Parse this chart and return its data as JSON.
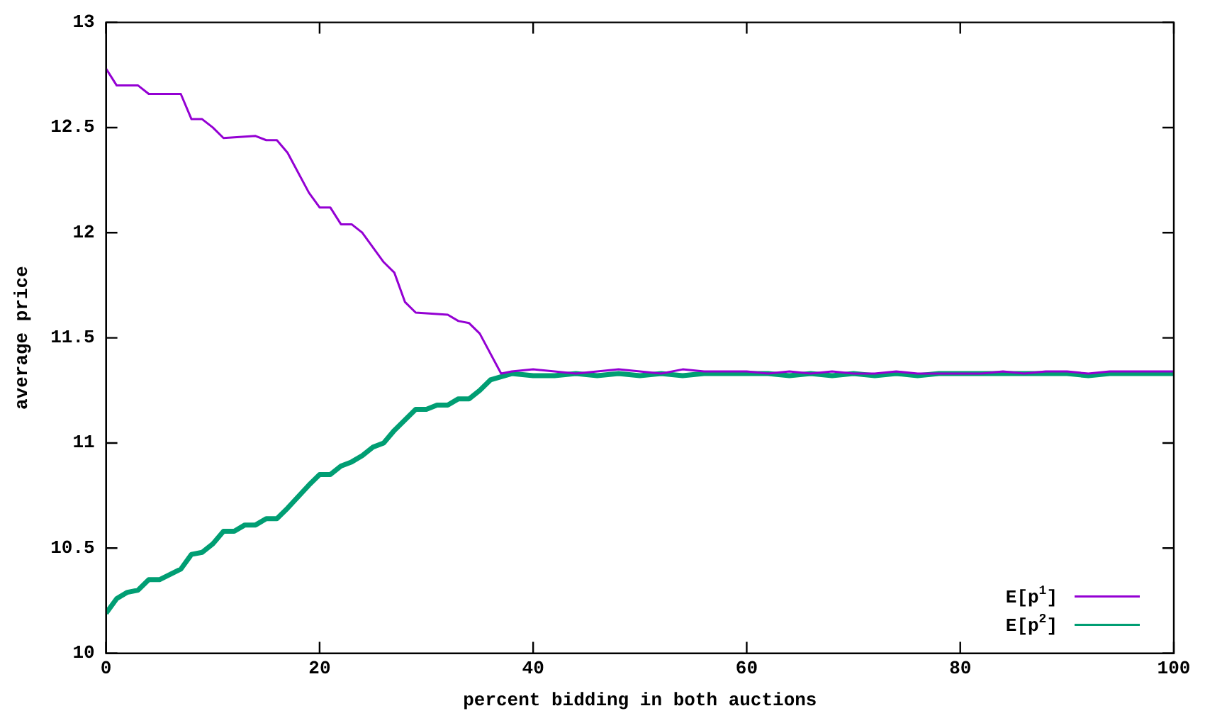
{
  "chart_data": {
    "type": "line",
    "xlabel": "percent bidding in both auctions",
    "ylabel": "average price",
    "xlim": [
      0,
      100
    ],
    "xticks": [
      0,
      20,
      40,
      60,
      80,
      100
    ],
    "ylim": [
      10,
      13
    ],
    "yticks": [
      10,
      10.5,
      11,
      11.5,
      12,
      12.5,
      13
    ],
    "grid": false,
    "legend": "bottom right",
    "marker": "none",
    "line_style": "solid",
    "series": [
      {
        "name": "E[p$^{1}$]",
        "color": "#9400d3",
        "x": [
          0,
          1,
          3,
          4,
          7,
          8,
          9,
          10,
          11,
          14,
          15,
          16,
          17,
          19,
          20,
          21,
          22,
          23,
          24,
          26,
          27,
          28,
          29,
          32,
          33,
          34,
          35,
          37,
          38,
          40,
          42,
          44,
          46,
          48,
          50,
          52,
          54,
          56,
          58,
          60,
          62,
          64,
          66,
          68,
          70,
          72,
          74,
          76,
          78,
          80,
          82,
          84,
          86,
          88,
          90,
          92,
          94,
          96,
          98,
          100
        ],
        "values": [
          12.78,
          12.7,
          12.7,
          12.66,
          12.66,
          12.54,
          12.54,
          12.5,
          12.45,
          12.46,
          12.44,
          12.44,
          12.38,
          12.19,
          12.12,
          12.12,
          12.04,
          12.04,
          12.0,
          11.86,
          11.81,
          11.67,
          11.62,
          11.61,
          11.58,
          11.57,
          11.52,
          11.33,
          11.34,
          11.35,
          11.34,
          11.33,
          11.34,
          11.35,
          11.34,
          11.33,
          11.35,
          11.34,
          11.34,
          11.34,
          11.33,
          11.34,
          11.33,
          11.34,
          11.33,
          11.33,
          11.34,
          11.33,
          11.33,
          11.33,
          11.33,
          11.34,
          11.33,
          11.34,
          11.34,
          11.33,
          11.34,
          11.34,
          11.34,
          11.34
        ]
      },
      {
        "name": "E[p$^{2}$]",
        "color": "#009e73",
        "x": [
          0,
          1,
          2,
          3,
          4,
          5,
          7,
          8,
          9,
          10,
          11,
          12,
          13,
          14,
          15,
          16,
          17,
          19,
          20,
          21,
          22,
          23,
          24,
          25,
          26,
          27,
          29,
          30,
          31,
          32,
          33,
          34,
          35,
          36,
          38,
          40,
          42,
          44,
          46,
          48,
          50,
          52,
          54,
          56,
          58,
          60,
          62,
          64,
          66,
          68,
          70,
          72,
          74,
          76,
          78,
          80,
          82,
          84,
          86,
          88,
          90,
          92,
          94,
          96,
          98,
          100
        ],
        "values": [
          10.19,
          10.26,
          10.29,
          10.3,
          10.35,
          10.35,
          10.4,
          10.47,
          10.48,
          10.52,
          10.58,
          10.58,
          10.61,
          10.61,
          10.64,
          10.64,
          10.69,
          10.8,
          10.85,
          10.85,
          10.89,
          10.91,
          10.94,
          10.98,
          11.0,
          11.06,
          11.16,
          11.16,
          11.18,
          11.18,
          11.21,
          11.21,
          11.25,
          11.3,
          11.33,
          11.32,
          11.32,
          11.33,
          11.32,
          11.33,
          11.32,
          11.33,
          11.32,
          11.33,
          11.33,
          11.33,
          11.33,
          11.32,
          11.33,
          11.32,
          11.33,
          11.32,
          11.33,
          11.32,
          11.33,
          11.33,
          11.33,
          11.33,
          11.33,
          11.33,
          11.33,
          11.32,
          11.33,
          11.33,
          11.33,
          11.33
        ]
      }
    ]
  }
}
